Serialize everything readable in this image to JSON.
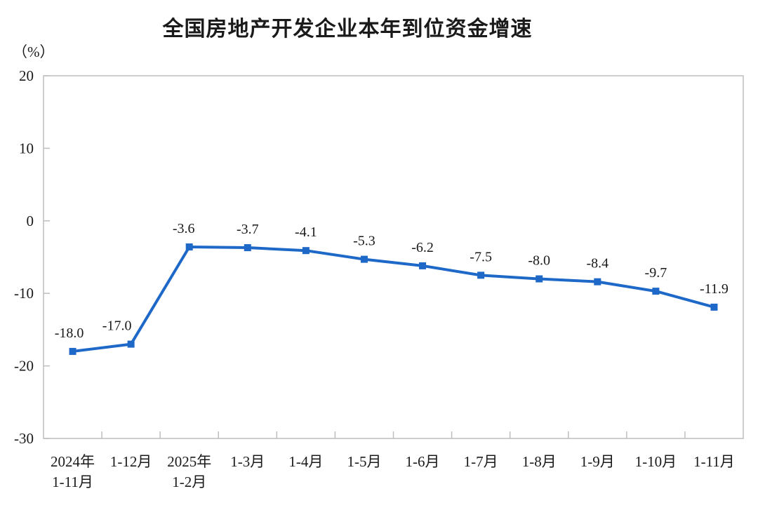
{
  "chart_data": {
    "type": "line",
    "title": "全国房地产开发企业本年到位资金增速",
    "unit_label": "（%）",
    "categories": [
      "2024年\n1-11月",
      "1-12月",
      "2025年\n1-2月",
      "1-3月",
      "1-4月",
      "1-5月",
      "1-6月",
      "1-7月",
      "1-8月",
      "1-9月",
      "1-10月",
      "1-11月"
    ],
    "values": [
      -18.0,
      -17.0,
      -3.6,
      -3.7,
      -4.1,
      -5.3,
      -6.2,
      -7.5,
      -8.0,
      -8.4,
      -9.7,
      -11.9
    ],
    "data_labels": [
      "-18.0",
      "-17.0",
      "-3.6",
      "-3.7",
      "-4.1",
      "-5.3",
      "-6.2",
      "-7.5",
      "-8.0",
      "-8.4",
      "-9.7",
      "-11.9"
    ],
    "data_label_x_offsets": [
      -5,
      -20,
      -8,
      0,
      0,
      0,
      0,
      0,
      0,
      0,
      0,
      0
    ],
    "y_ticks": [
      20,
      10,
      0,
      -10,
      -20,
      -30
    ],
    "ylim": [
      -30,
      20
    ],
    "xlabel": "",
    "ylabel": "（%）",
    "grid": false,
    "legend_position": "none",
    "marker_style": "square",
    "colors": {
      "line": "#1E68C8",
      "marker": "#1E68C8",
      "axis": "#BEBEBE",
      "text": "#1A1A1A",
      "background": "#FFFFFF"
    }
  }
}
